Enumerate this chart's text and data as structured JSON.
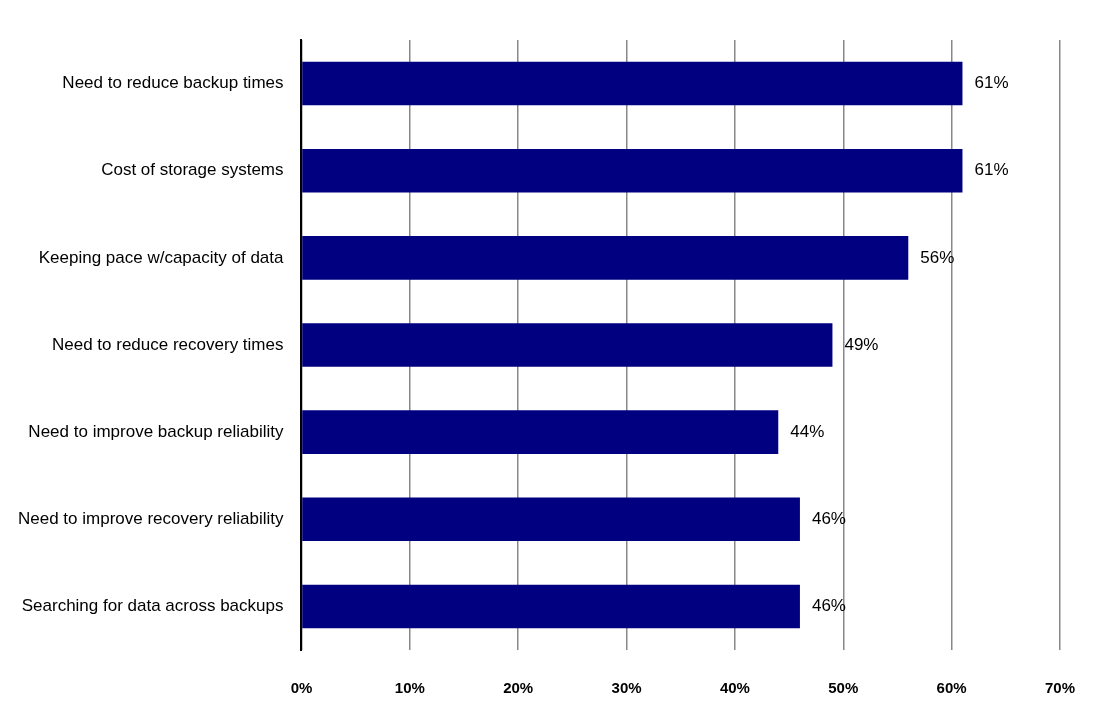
{
  "chart_data": {
    "type": "bar",
    "orientation": "horizontal",
    "categories": [
      "Need to reduce backup times",
      "Cost of storage systems",
      "Keeping pace w/capacity of data",
      "Need to reduce recovery times",
      "Need to improve backup reliability",
      "Need to improve recovery reliability",
      "Searching for data across backups"
    ],
    "values": [
      61,
      61,
      56,
      49,
      44,
      46,
      46
    ],
    "value_labels": [
      "61%",
      "61%",
      "56%",
      "49%",
      "44%",
      "46%",
      "46%"
    ],
    "color": "#000080",
    "xlim": [
      0,
      70
    ],
    "xticks": [
      {
        "value": 0,
        "label": "0%"
      },
      {
        "value": 10,
        "label": "10%"
      },
      {
        "value": 20,
        "label": "20%"
      },
      {
        "value": 30,
        "label": "30%"
      },
      {
        "value": 40,
        "label": "40%"
      },
      {
        "value": 50,
        "label": "50%"
      },
      {
        "value": 60,
        "label": "60%"
      },
      {
        "value": 70,
        "label": "70%"
      }
    ],
    "grid": "x",
    "legend": false
  }
}
